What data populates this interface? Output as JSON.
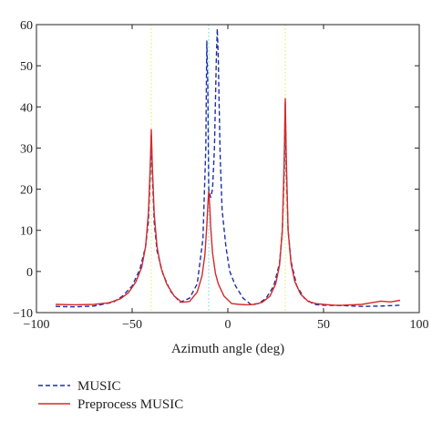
{
  "chart_data": {
    "type": "line",
    "xlabel": "Azimuth angle (deg)",
    "ylabel": "",
    "xlim": [
      -100,
      100
    ],
    "ylim": [
      -10,
      60
    ],
    "xticks": [
      -100,
      -50,
      0,
      50,
      100
    ],
    "yticks": [
      -10,
      0,
      10,
      20,
      30,
      40,
      50,
      60
    ],
    "grid": false,
    "legend_position": "bottom-left, outside plot",
    "reference_lines": [
      {
        "x": -40,
        "color": "#e8f07a",
        "style": "dotted"
      },
      {
        "x": -10,
        "color": "#7fe0e6",
        "style": "dotted"
      },
      {
        "x": 30,
        "color": "#e8f07a",
        "style": "dotted"
      }
    ],
    "series": [
      {
        "name": "MUSIC",
        "color": "#1f2fa8",
        "style": "dashed",
        "x": [
          -90,
          -80,
          -70,
          -60,
          -55,
          -50,
          -46,
          -43,
          -41.5,
          -40.5,
          -40,
          -39.5,
          -38.5,
          -37,
          -34,
          -30,
          -25,
          -20,
          -16,
          -13,
          -11.5,
          -11,
          -10.5,
          -10,
          -9,
          -8,
          -7,
          -6,
          -5.5,
          -5,
          -4.5,
          -4,
          -3,
          -1,
          1,
          4,
          8,
          12,
          16,
          20,
          24,
          27,
          28.5,
          29.5,
          30,
          30.5,
          31.5,
          33,
          36,
          40,
          45,
          50,
          60,
          70,
          80,
          90
        ],
        "y": [
          -8.5,
          -8.6,
          -8.4,
          -7.5,
          -6.0,
          -3.5,
          0.5,
          6.0,
          12.0,
          24.0,
          33.0,
          24.0,
          12.0,
          5.0,
          -0.5,
          -4.8,
          -7.5,
          -6.5,
          -3.0,
          8.0,
          30.0,
          56.0,
          45.0,
          20.0,
          18.0,
          20.0,
          30.0,
          52.0,
          59.0,
          52.0,
          40.0,
          28.0,
          15.0,
          6.0,
          0.0,
          -3.5,
          -6.5,
          -8.0,
          -7.8,
          -6.5,
          -3.5,
          2.0,
          10.0,
          25.0,
          41.0,
          25.0,
          10.0,
          2.5,
          -3.5,
          -6.5,
          -8.0,
          -8.2,
          -8.3,
          -8.5,
          -8.4,
          -8.2
        ]
      },
      {
        "name": "Preprocess MUSIC",
        "color": "#d42a2a",
        "style": "solid",
        "x": [
          -90,
          -80,
          -70,
          -62,
          -56,
          -52,
          -48,
          -45,
          -43,
          -41.5,
          -40.5,
          -40,
          -39.5,
          -38.5,
          -37,
          -35,
          -32,
          -28,
          -24,
          -20,
          -16,
          -13.5,
          -12,
          -11,
          -10.5,
          -10,
          -9.5,
          -9,
          -8,
          -6.5,
          -5,
          -2,
          2,
          6,
          10,
          14,
          18,
          22,
          25,
          27,
          28.5,
          29.5,
          30,
          30.5,
          31.5,
          33,
          35,
          38,
          42,
          46,
          50,
          56,
          60,
          65,
          70,
          75,
          80,
          85,
          90
        ],
        "y": [
          -8.0,
          -8.1,
          -8.0,
          -7.6,
          -6.6,
          -5.2,
          -2.5,
          1.0,
          6.0,
          14.0,
          26.0,
          34.5,
          26.0,
          14.0,
          6.0,
          1.0,
          -3.0,
          -6.0,
          -7.5,
          -7.3,
          -5.0,
          -1.0,
          4.0,
          11.0,
          16.0,
          19.5,
          16.0,
          11.0,
          4.5,
          -0.5,
          -3.0,
          -6.0,
          -7.8,
          -8.0,
          -8.1,
          -8.0,
          -7.5,
          -6.0,
          -3.0,
          1.5,
          10.0,
          28.0,
          42.0,
          28.0,
          10.0,
          2.0,
          -2.5,
          -5.5,
          -7.3,
          -7.8,
          -8.0,
          -8.2,
          -8.2,
          -8.1,
          -8.0,
          -7.6,
          -7.2,
          -7.4,
          -7.0
        ]
      }
    ]
  }
}
